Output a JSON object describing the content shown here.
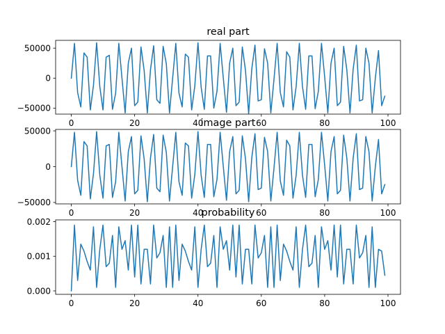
{
  "chart_data": [
    {
      "type": "line",
      "title": "real part",
      "xlabel": "",
      "ylabel": "",
      "xlim": [
        -4.95,
        103.95
      ],
      "ylim": [
        -60000,
        63000
      ],
      "xticks": [
        0,
        20,
        40,
        60,
        80,
        100
      ],
      "yticks": [
        -50000,
        0,
        50000
      ],
      "xtick_labels": [
        "0",
        "20",
        "40",
        "60",
        "80",
        "100"
      ],
      "ytick_labels": [
        "−50000",
        "0",
        "50000"
      ],
      "grid": false,
      "color": "#1f77b4",
      "series": [
        {
          "values": [
            0,
            58000,
            -24000,
            -48000,
            42000,
            35000,
            -53000,
            -12000,
            59000,
            -14000,
            -53000,
            35000,
            38000,
            -52000,
            -25000,
            58000,
            0,
            -58000,
            25000,
            50000,
            -46000,
            -40000,
            52000,
            13000,
            -58000,
            14000,
            54000,
            -36000,
            -42000,
            53000,
            24000,
            -58000,
            0,
            58000,
            -25000,
            -48000,
            40000,
            35000,
            -53000,
            -13000,
            59000,
            -15000,
            -52000,
            37000,
            37000,
            -50000,
            -22000,
            58000,
            0,
            -57000,
            25000,
            50000,
            -46000,
            -40000,
            52000,
            13000,
            -59000,
            16000,
            55000,
            -38000,
            -36000,
            49000,
            25000,
            -58000,
            -2000,
            58000,
            -24000,
            -48000,
            44000,
            35000,
            -53000,
            -14000,
            58000,
            -14000,
            -52000,
            37000,
            37000,
            -51000,
            -22000,
            58000,
            2000,
            -58000,
            25000,
            50000,
            -46000,
            -40000,
            53000,
            14000,
            -58000,
            15000,
            55000,
            -38000,
            -36000,
            50000,
            25000,
            -58000,
            0,
            46000,
            -46000,
            -30000
          ]
        }
      ]
    },
    {
      "type": "line",
      "title": "image part",
      "xlabel": "",
      "ylabel": "",
      "xlim": [
        -4.95,
        103.95
      ],
      "ylim": [
        -52000,
        52000
      ],
      "xticks": [
        0,
        20,
        40,
        60,
        80,
        100
      ],
      "yticks": [
        -50000,
        0,
        50000
      ],
      "xtick_labels": [
        "0",
        "20",
        "40",
        "60",
        "80",
        "100"
      ],
      "ytick_labels": [
        "−50000",
        "0",
        "50000"
      ],
      "grid": false,
      "color": "#1f77b4",
      "series": [
        {
          "values": [
            0,
            48000,
            -19000,
            -40000,
            35000,
            29000,
            -45000,
            -10000,
            49000,
            -12000,
            -44000,
            29000,
            31000,
            -43000,
            -21000,
            48000,
            0,
            -48000,
            21000,
            42000,
            -38000,
            -33000,
            43000,
            11000,
            -49000,
            12000,
            45000,
            -30000,
            -35000,
            44000,
            20000,
            -48000,
            0,
            48000,
            -21000,
            -40000,
            33000,
            29000,
            -44000,
            -11000,
            49000,
            -12000,
            -43000,
            31000,
            31000,
            -42000,
            -18000,
            48000,
            0,
            -47000,
            21000,
            42000,
            -38000,
            -33000,
            43000,
            11000,
            -49000,
            13000,
            46000,
            -32000,
            -30000,
            41000,
            21000,
            -48000,
            -2000,
            48000,
            -20000,
            -40000,
            37000,
            29000,
            -44000,
            -12000,
            48000,
            -12000,
            -43000,
            31000,
            31000,
            -42000,
            -18000,
            48000,
            2000,
            -48000,
            21000,
            42000,
            -38000,
            -33000,
            44000,
            12000,
            -48000,
            12000,
            46000,
            -32000,
            -30000,
            42000,
            21000,
            -48000,
            0,
            38000,
            -38000,
            -25000
          ]
        }
      ]
    },
    {
      "type": "line",
      "title": "probability",
      "xlabel": "",
      "ylabel": "",
      "xlim": [
        -4.95,
        103.95
      ],
      "ylim": [
        -0.0001,
        0.00205
      ],
      "xticks": [
        0,
        20,
        40,
        60,
        80,
        100
      ],
      "yticks": [
        0,
        0.001,
        0.002
      ],
      "xtick_labels": [
        "0",
        "20",
        "40",
        "60",
        "80",
        "100"
      ],
      "ytick_labels": [
        "0.000",
        "0.001",
        "0.002"
      ],
      "grid": false,
      "color": "#1f77b4",
      "series": [
        {
          "values": [
            0,
            0.0019,
            0.0003,
            0.00135,
            0.00115,
            0.00085,
            0.0006,
            0.00185,
            0.0001,
            0.0012,
            0.0019,
            0.0007,
            0.0008,
            0.0016,
            0.0001,
            0.00185,
            0.0012,
            0.00145,
            0.0006,
            0.0019,
            0.0004,
            0.0019,
            0.0002,
            0.0012,
            0.0012,
            0.0002,
            0.0019,
            0.00095,
            0.0011,
            0.0016,
            0.0001,
            0.00185,
            0.0001,
            0.0019,
            0.0003,
            0.00135,
            0.00115,
            0.00085,
            0.0006,
            0.00185,
            0.0001,
            0.0012,
            0.0019,
            0.0007,
            0.0008,
            0.0016,
            0.0001,
            0.00185,
            0.0012,
            0.00145,
            0.0006,
            0.0019,
            0.0004,
            0.0019,
            0.0002,
            0.0012,
            0.0012,
            0.0002,
            0.0019,
            0.00095,
            0.0011,
            0.0016,
            0.0001,
            0.00185,
            0.0001,
            0.0019,
            0.0003,
            0.00135,
            0.00115,
            0.00085,
            0.0006,
            0.00185,
            0.0001,
            0.0012,
            0.0019,
            0.0007,
            0.0008,
            0.0016,
            0.0001,
            0.00185,
            0.0012,
            0.00145,
            0.0006,
            0.0019,
            0.0004,
            0.0019,
            0.0002,
            0.0012,
            0.0012,
            0.0002,
            0.0019,
            0.00095,
            0.0011,
            0.0016,
            0.0001,
            0.00185,
            0.0001,
            0.0012,
            0.00115,
            0.00045
          ]
        }
      ]
    }
  ]
}
